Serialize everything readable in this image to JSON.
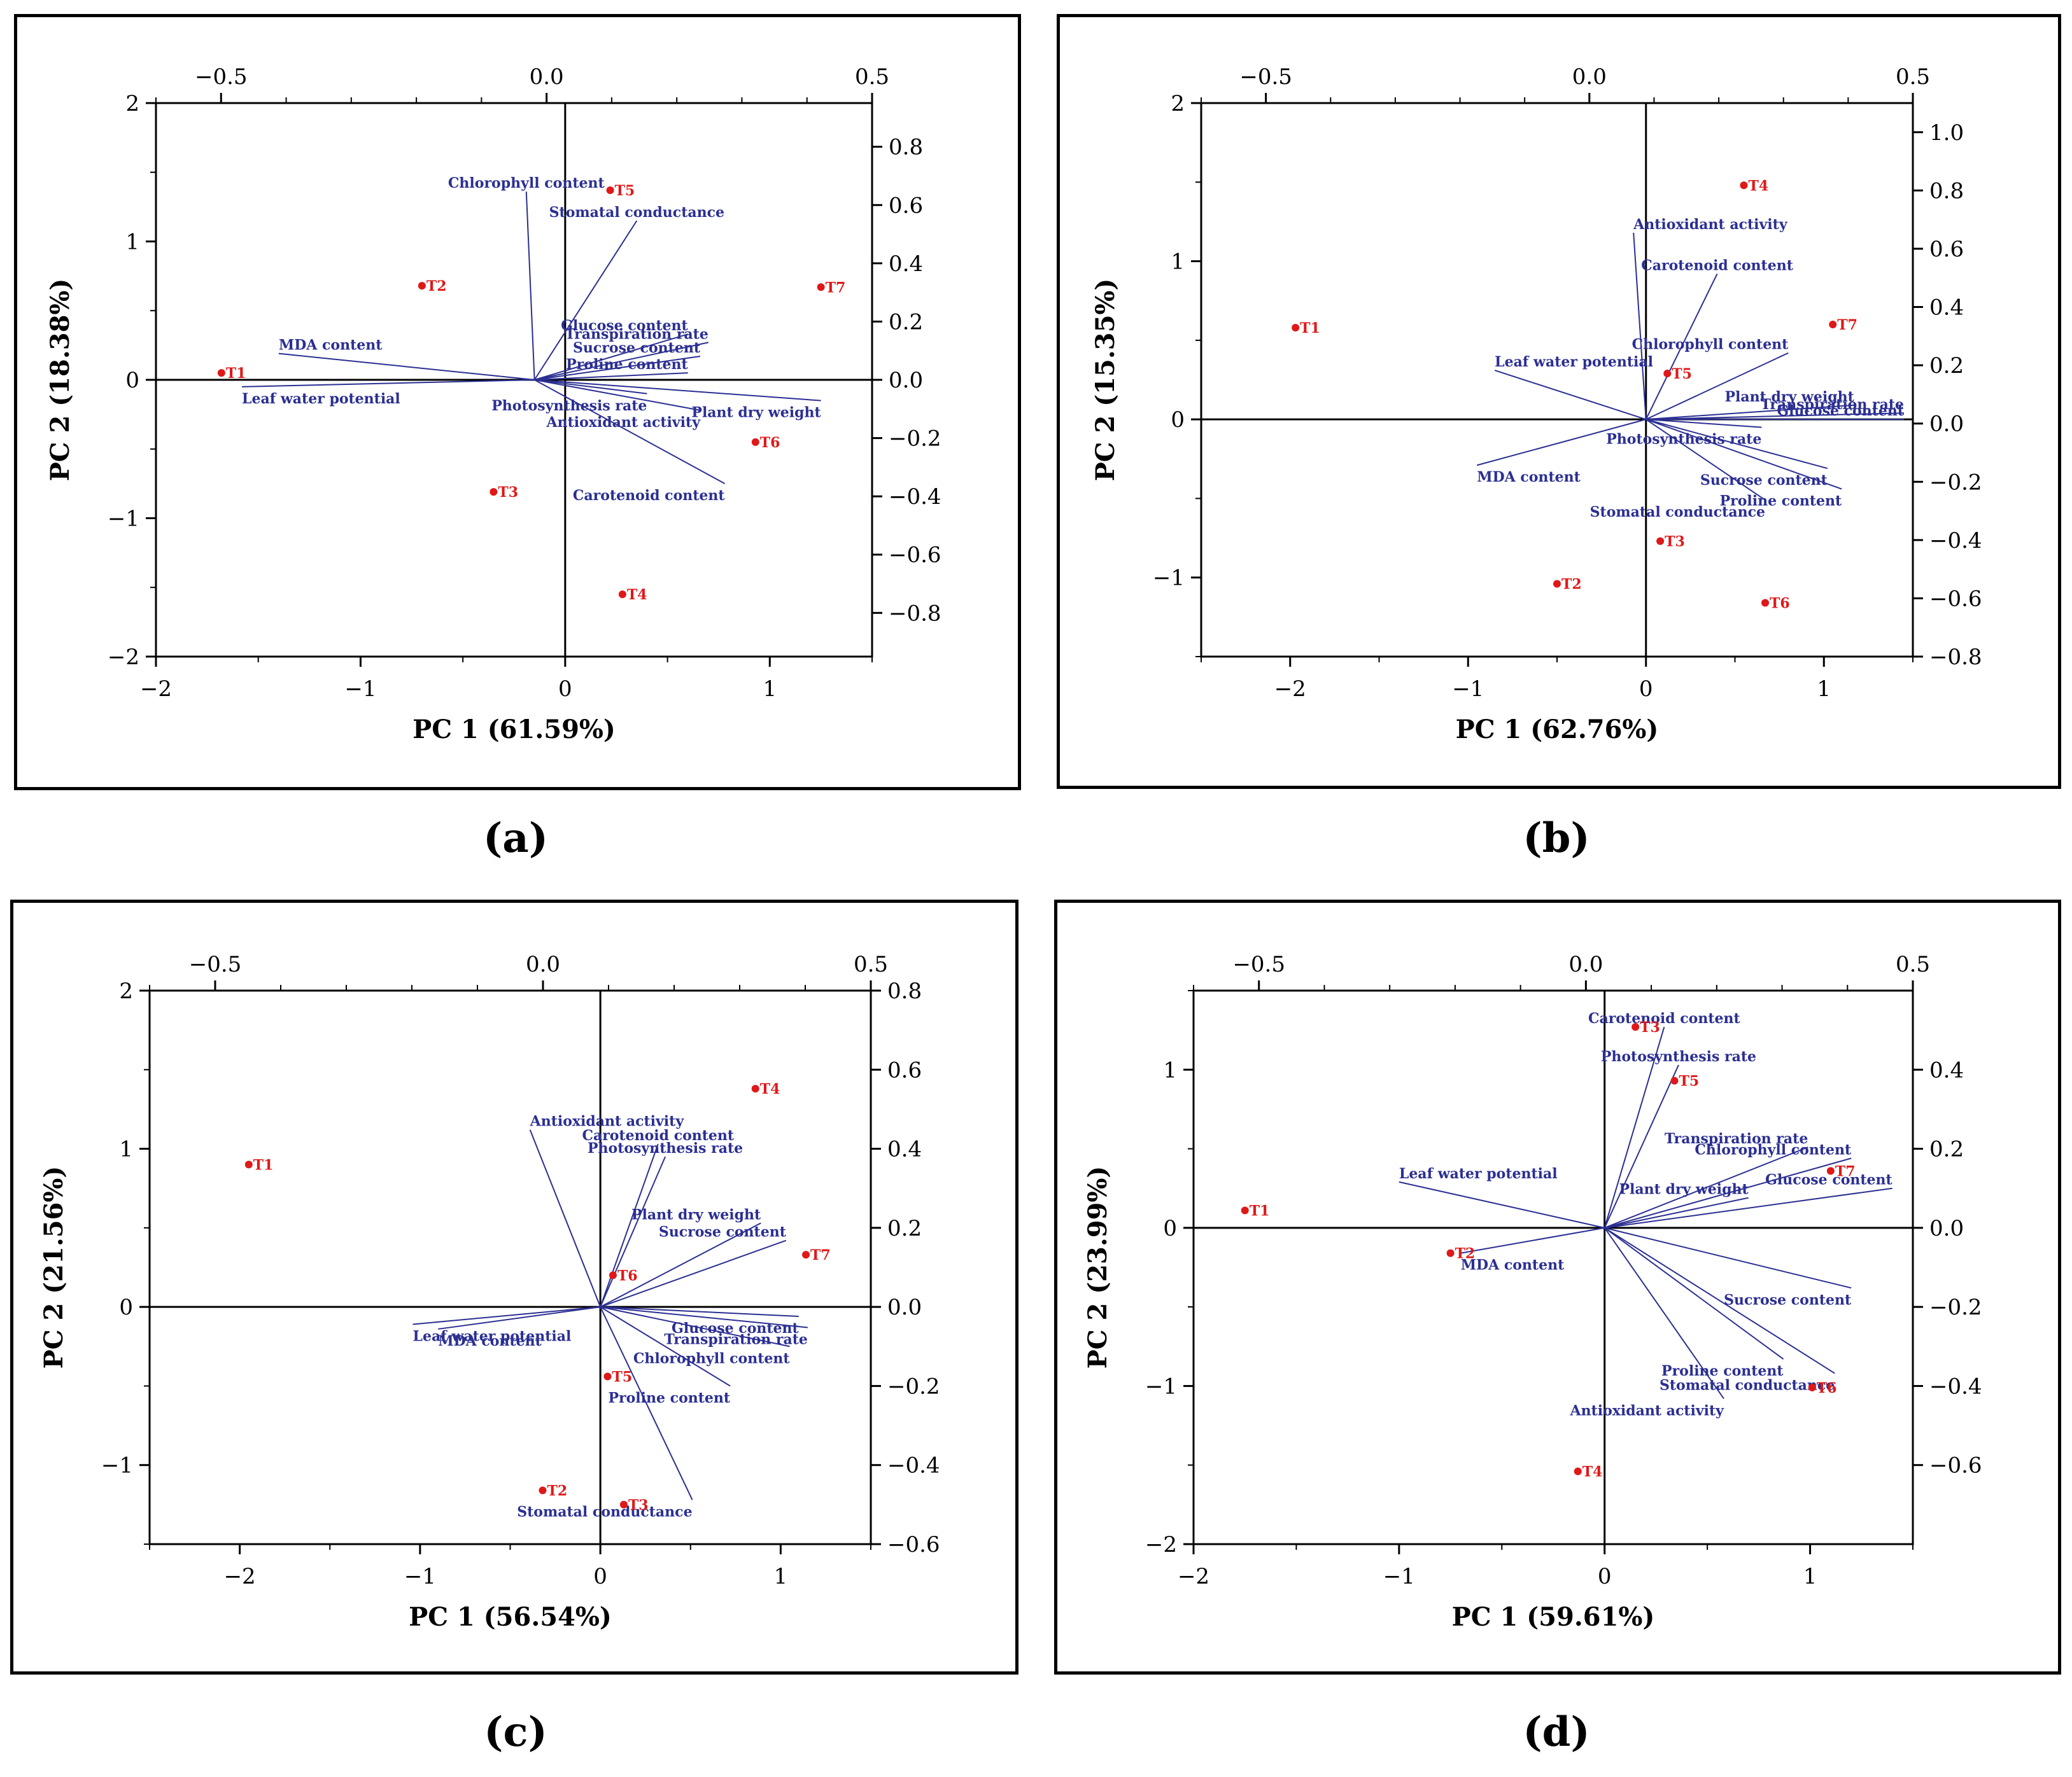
{
  "chart_data": [
    {
      "panel": "a",
      "type": "scatter",
      "subtype": "biplot",
      "xlabel": "PC 1 (61.59%)",
      "ylabel": "PC 2 (18.38%)",
      "xlim": [
        -2,
        1.5
      ],
      "ylim": [
        -2,
        2
      ],
      "x_ticks": [
        -2,
        -1,
        0,
        1
      ],
      "y_ticks": [
        -2,
        -1,
        0,
        1,
        2
      ],
      "top_xlim": [
        -0.6,
        0.5
      ],
      "top_ticks": [
        -0.5,
        0.0,
        0.5
      ],
      "right_ylim": [
        -0.95,
        0.95
      ],
      "right_ticks": [
        -0.8,
        -0.6,
        -0.4,
        -0.2,
        0.0,
        0.2,
        0.4,
        0.6,
        0.8
      ],
      "origin": [
        -0.15,
        0.0
      ],
      "scores": [
        {
          "label": "T1",
          "x": -1.68,
          "y": 0.05
        },
        {
          "label": "T2",
          "x": -0.7,
          "y": 0.68
        },
        {
          "label": "T3",
          "x": -0.35,
          "y": -0.81
        },
        {
          "label": "T4",
          "x": 0.28,
          "y": -1.55
        },
        {
          "label": "T5",
          "x": 0.22,
          "y": 1.37
        },
        {
          "label": "T6",
          "x": 0.93,
          "y": -0.45
        },
        {
          "label": "T7",
          "x": 1.25,
          "y": 0.67
        }
      ],
      "loadings": [
        {
          "label": "Chlorophyll content",
          "x": -0.19,
          "y": 1.36
        },
        {
          "label": "Stomatal conductance",
          "x": 0.35,
          "y": 1.15
        },
        {
          "label": "MDA content",
          "x": -1.4,
          "y": 0.19
        },
        {
          "label": "Leaf water potential",
          "x": -1.58,
          "y": -0.05
        },
        {
          "label": "Glucose content",
          "x": 0.6,
          "y": 0.33
        },
        {
          "label": "Transpiration rate",
          "x": 0.7,
          "y": 0.27
        },
        {
          "label": "Sucrose content",
          "x": 0.66,
          "y": 0.17
        },
        {
          "label": "Proline content",
          "x": 0.6,
          "y": 0.05
        },
        {
          "label": "Photosynthesis rate",
          "x": 0.4,
          "y": -0.1
        },
        {
          "label": "Plant dry weight",
          "x": 1.25,
          "y": -0.15
        },
        {
          "label": "Antioxidant activity",
          "x": 0.66,
          "y": -0.22
        },
        {
          "label": "Carotenoid content",
          "x": 0.78,
          "y": -0.75
        }
      ]
    },
    {
      "panel": "b",
      "type": "scatter",
      "subtype": "biplot",
      "xlabel": "PC 1 (62.76%)",
      "ylabel": "PC 2 (15.35%)",
      "xlim": [
        -2.5,
        1.5
      ],
      "ylim": [
        -1.5,
        2
      ],
      "x_ticks": [
        -2,
        -1,
        0,
        1
      ],
      "y_ticks": [
        -1,
        0,
        1,
        2
      ],
      "top_xlim": [
        -0.6,
        0.5
      ],
      "top_ticks": [
        -0.5,
        0.0,
        0.5
      ],
      "right_ylim": [
        -0.8,
        1.1
      ],
      "right_ticks": [
        -0.8,
        -0.6,
        -0.4,
        -0.2,
        0.0,
        0.2,
        0.4,
        0.6,
        0.8,
        1.0
      ],
      "origin": [
        0.0,
        0.0
      ],
      "scores": [
        {
          "label": "T1",
          "x": -1.97,
          "y": 0.58
        },
        {
          "label": "T2",
          "x": -0.5,
          "y": -1.04
        },
        {
          "label": "T3",
          "x": 0.08,
          "y": -0.77
        },
        {
          "label": "T4",
          "x": 0.55,
          "y": 1.48
        },
        {
          "label": "T5",
          "x": 0.12,
          "y": 0.29
        },
        {
          "label": "T6",
          "x": 0.67,
          "y": -1.16
        },
        {
          "label": "T7",
          "x": 1.05,
          "y": 0.6
        }
      ],
      "loadings": [
        {
          "label": "Antioxidant activity",
          "x": -0.07,
          "y": 1.18
        },
        {
          "label": "Carotenoid content",
          "x": 0.4,
          "y": 0.92
        },
        {
          "label": "Leaf water potential",
          "x": -0.85,
          "y": 0.31
        },
        {
          "label": "MDA content",
          "x": -0.95,
          "y": -0.29
        },
        {
          "label": "Chlorophyll content",
          "x": 0.8,
          "y": 0.42
        },
        {
          "label": "Plant dry weight",
          "x": 1.17,
          "y": 0.09
        },
        {
          "label": "Transpiration rate",
          "x": 1.45,
          "y": 0.04
        },
        {
          "label": "Glucose content",
          "x": 1.45,
          "y": 0.0
        },
        {
          "label": "Photosynthesis rate",
          "x": 0.65,
          "y": -0.05
        },
        {
          "label": "Sucrose content",
          "x": 1.02,
          "y": -0.31
        },
        {
          "label": "Proline content",
          "x": 1.1,
          "y": -0.44
        },
        {
          "label": "Stomatal conductance",
          "x": 0.67,
          "y": -0.51
        }
      ]
    },
    {
      "panel": "c",
      "type": "scatter",
      "subtype": "biplot",
      "xlabel": "PC 1 (56.54%)",
      "ylabel": "PC 2 (21.56%)",
      "xlim": [
        -2.5,
        1.5
      ],
      "ylim": [
        -1.5,
        2
      ],
      "x_ticks": [
        -2,
        -1,
        0,
        1
      ],
      "y_ticks": [
        -1,
        0,
        1,
        2
      ],
      "top_xlim": [
        -0.6,
        0.5
      ],
      "top_ticks": [
        -0.5,
        0.0,
        0.5
      ],
      "right_ylim": [
        -0.6,
        0.8
      ],
      "right_ticks": [
        -0.6,
        -0.4,
        -0.2,
        0.0,
        0.2,
        0.4,
        0.6,
        0.8
      ],
      "origin": [
        0.0,
        0.0
      ],
      "scores": [
        {
          "label": "T1",
          "x": -1.95,
          "y": 0.9
        },
        {
          "label": "T2",
          "x": -0.32,
          "y": -1.16
        },
        {
          "label": "T3",
          "x": 0.13,
          "y": -1.25
        },
        {
          "label": "T4",
          "x": 0.86,
          "y": 1.38
        },
        {
          "label": "T5",
          "x": 0.04,
          "y": -0.44
        },
        {
          "label": "T6",
          "x": 0.07,
          "y": 0.2
        },
        {
          "label": "T7",
          "x": 1.14,
          "y": 0.33
        }
      ],
      "loadings": [
        {
          "label": "Antioxidant activity",
          "x": -0.39,
          "y": 1.12
        },
        {
          "label": "Carotenoid content",
          "x": 0.32,
          "y": 1.03
        },
        {
          "label": "Photosynthesis rate",
          "x": 0.36,
          "y": 0.95
        },
        {
          "label": "Plant dry weight",
          "x": 0.89,
          "y": 0.53
        },
        {
          "label": "Sucrose content",
          "x": 1.03,
          "y": 0.42
        },
        {
          "label": "Leaf water potential",
          "x": -1.04,
          "y": -0.11
        },
        {
          "label": "MDA content",
          "x": -0.9,
          "y": -0.14
        },
        {
          "label": "Glucose content",
          "x": 1.1,
          "y": -0.06
        },
        {
          "label": "Transpiration rate",
          "x": 1.15,
          "y": -0.13
        },
        {
          "label": "Chlorophyll content",
          "x": 1.05,
          "y": -0.25
        },
        {
          "label": "Proline content",
          "x": 0.72,
          "y": -0.5
        },
        {
          "label": "Stomatal conductance",
          "x": 0.51,
          "y": -1.22
        }
      ]
    },
    {
      "panel": "d",
      "type": "scatter",
      "subtype": "biplot",
      "xlabel": "PC 1 (59.61%)",
      "ylabel": "PC 2 (23.99%)",
      "xlim": [
        -2,
        1.5
      ],
      "ylim": [
        -2,
        1.5
      ],
      "x_ticks": [
        -2,
        -1,
        0,
        1
      ],
      "y_ticks": [
        -2,
        -1,
        0,
        1
      ],
      "top_xlim": [
        -0.6,
        0.5
      ],
      "top_ticks": [
        -0.5,
        0.0,
        0.5
      ],
      "right_ylim": [
        -0.8,
        0.6
      ],
      "right_ticks": [
        -0.6,
        -0.4,
        -0.2,
        0.0,
        0.2,
        0.4
      ],
      "origin": [
        0.0,
        0.0
      ],
      "scores": [
        {
          "label": "T1",
          "x": -1.75,
          "y": 0.11
        },
        {
          "label": "T2",
          "x": -0.75,
          "y": -0.16
        },
        {
          "label": "T3",
          "x": 0.15,
          "y": 1.27
        },
        {
          "label": "T4",
          "x": -0.13,
          "y": -1.54
        },
        {
          "label": "T5",
          "x": 0.34,
          "y": 0.93
        },
        {
          "label": "T6",
          "x": 1.01,
          "y": -1.01
        },
        {
          "label": "T7",
          "x": 1.1,
          "y": 0.36
        }
      ],
      "loadings": [
        {
          "label": "Carotenoid content",
          "x": 0.29,
          "y": 1.27
        },
        {
          "label": "Photosynthesis rate",
          "x": 0.36,
          "y": 1.03
        },
        {
          "label": "Transpiration rate",
          "x": 0.99,
          "y": 0.51
        },
        {
          "label": "Chlorophyll content",
          "x": 1.2,
          "y": 0.44
        },
        {
          "label": "Glucose content",
          "x": 1.4,
          "y": 0.25
        },
        {
          "label": "Plant dry weight",
          "x": 0.7,
          "y": 0.19
        },
        {
          "label": "Leaf water potential",
          "x": -1.0,
          "y": 0.29
        },
        {
          "label": "MDA content",
          "x": -0.7,
          "y": -0.16
        },
        {
          "label": "Sucrose content",
          "x": 1.2,
          "y": -0.38
        },
        {
          "label": "Proline content",
          "x": 0.87,
          "y": -0.83
        },
        {
          "label": "Stomatal conductance",
          "x": 1.12,
          "y": -0.92
        },
        {
          "label": "Antioxidant activity",
          "x": 0.58,
          "y": -1.08
        }
      ]
    }
  ],
  "captions": {
    "a": "(a)",
    "b": "(b)",
    "c": "(c)",
    "d": "(d)"
  },
  "colors": {
    "score": "#e01818",
    "loading": "#2b2f92",
    "axis": "#000000"
  }
}
